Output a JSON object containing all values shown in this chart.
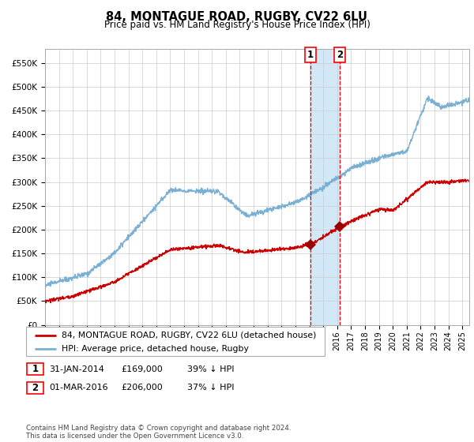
{
  "title": "84, MONTAGUE ROAD, RUGBY, CV22 6LU",
  "subtitle": "Price paid vs. HM Land Registry's House Price Index (HPI)",
  "xlim_start": 1995.0,
  "xlim_end": 2025.5,
  "ylim": [
    0,
    580000
  ],
  "yticks": [
    0,
    50000,
    100000,
    150000,
    200000,
    250000,
    300000,
    350000,
    400000,
    450000,
    500000,
    550000
  ],
  "ytick_labels": [
    "£0",
    "£50K",
    "£100K",
    "£150K",
    "£200K",
    "£250K",
    "£300K",
    "£350K",
    "£400K",
    "£450K",
    "£500K",
    "£550K"
  ],
  "hpi_color": "#7ab0d4",
  "price_color": "#cc0000",
  "marker_color": "#990000",
  "vline1_x": 2014.08,
  "vline2_x": 2016.17,
  "shade_color": "#cce4f5",
  "point1_x": 2014.08,
  "point1_y": 169000,
  "point2_x": 2016.17,
  "point2_y": 206000,
  "legend_line1": "84, MONTAGUE ROAD, RUGBY, CV22 6LU (detached house)",
  "legend_line2": "HPI: Average price, detached house, Rugby",
  "table_row1_num": "1",
  "table_row1_date": "31-JAN-2014",
  "table_row1_price": "£169,000",
  "table_row1_hpi": "39% ↓ HPI",
  "table_row2_num": "2",
  "table_row2_date": "01-MAR-2016",
  "table_row2_price": "£206,000",
  "table_row2_hpi": "37% ↓ HPI",
  "footer": "Contains HM Land Registry data © Crown copyright and database right 2024.\nThis data is licensed under the Open Government Licence v3.0.",
  "xticks": [
    1995,
    1996,
    1997,
    1998,
    1999,
    2000,
    2001,
    2002,
    2003,
    2004,
    2005,
    2006,
    2007,
    2008,
    2009,
    2010,
    2011,
    2012,
    2013,
    2014,
    2015,
    2016,
    2017,
    2018,
    2019,
    2020,
    2021,
    2022,
    2023,
    2024,
    2025
  ],
  "background_color": "#ffffff",
  "grid_color": "#cccccc"
}
